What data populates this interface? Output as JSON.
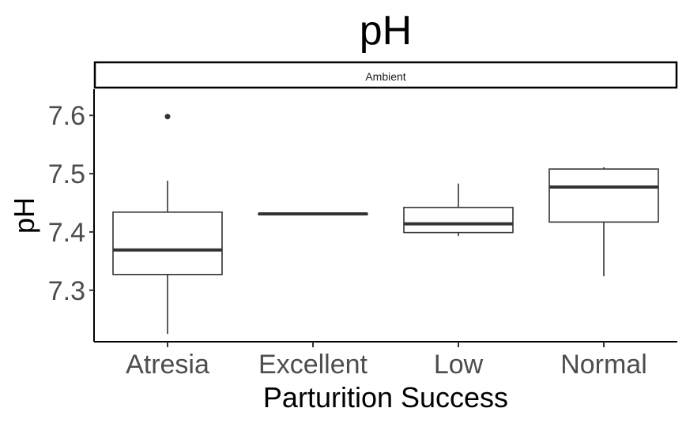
{
  "chart_data": {
    "type": "boxplot",
    "title": "pH",
    "facet": "Ambient",
    "xlabel": "Parturition Success",
    "ylabel": "pH",
    "ylim": [
      7.213,
      7.645
    ],
    "yticks": [
      7.3,
      7.4,
      7.5,
      7.6
    ],
    "ytick_labels": [
      "7.3",
      "7.4",
      "7.5",
      "7.6"
    ],
    "categories": [
      "Atresia",
      "Excellent",
      "Low",
      "Normal"
    ],
    "boxes": [
      {
        "category": "Atresia",
        "whisker_low": 7.225,
        "q1": 7.327,
        "median": 7.369,
        "q3": 7.434,
        "whisker_high": 7.488,
        "outliers": [
          7.598
        ]
      },
      {
        "category": "Excellent",
        "whisker_low": 7.431,
        "q1": 7.431,
        "median": 7.431,
        "q3": 7.431,
        "whisker_high": 7.431,
        "outliers": []
      },
      {
        "category": "Low",
        "whisker_low": 7.393,
        "q1": 7.399,
        "median": 7.414,
        "q3": 7.442,
        "whisker_high": 7.483,
        "outliers": []
      },
      {
        "category": "Normal",
        "whisker_low": 7.324,
        "q1": 7.417,
        "median": 7.477,
        "q3": 7.508,
        "whisker_high": 7.511,
        "outliers": []
      }
    ],
    "grid": false,
    "colors": {
      "box_line": "#333333",
      "axis": "#000000",
      "tick_text": "#4d4d4d",
      "strip_fill": "#ffffff"
    }
  }
}
